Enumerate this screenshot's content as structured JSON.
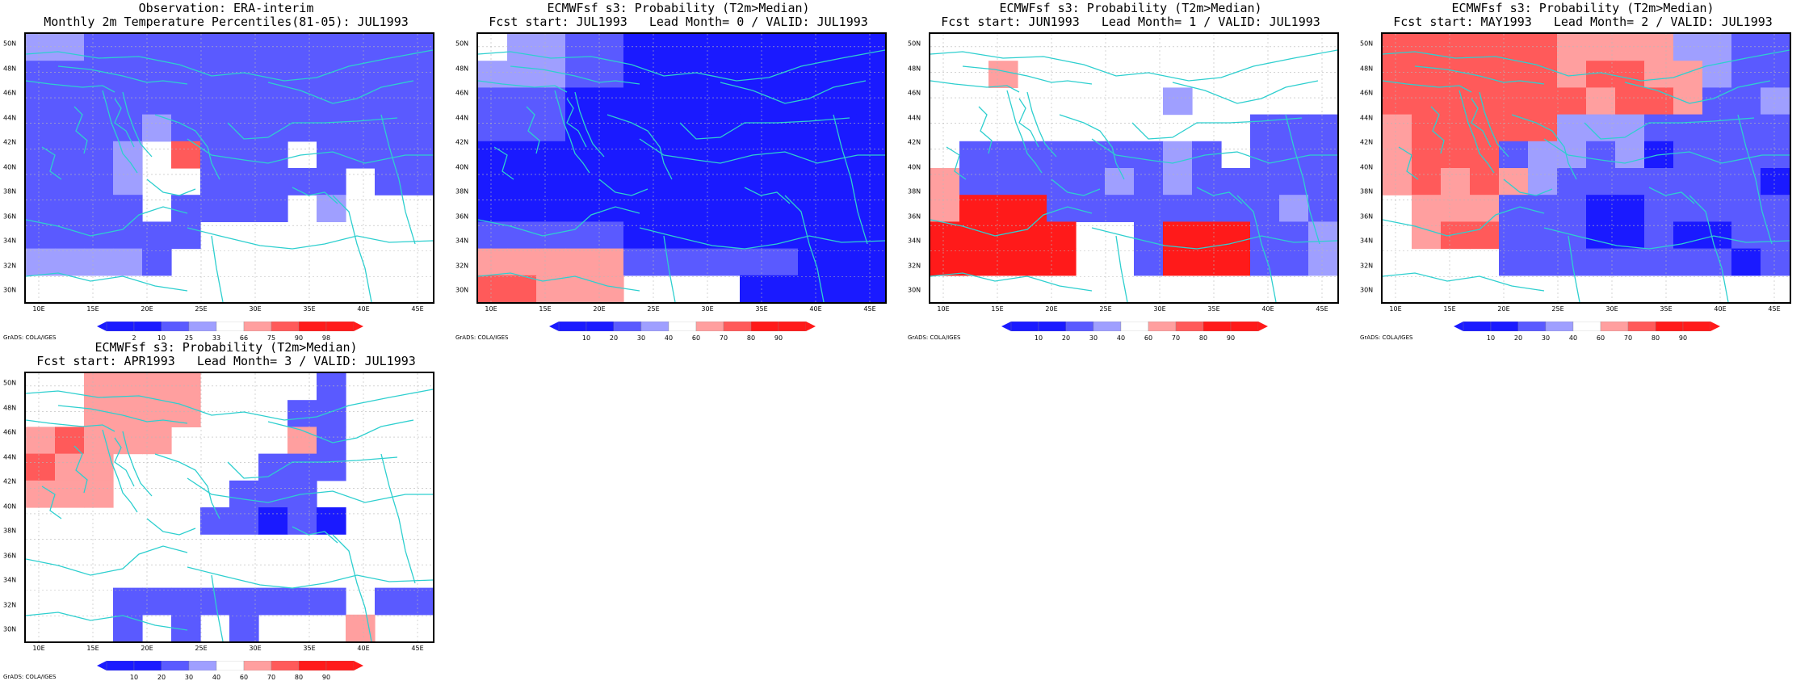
{
  "lat_labels": [
    "50N",
    "48N",
    "46N",
    "44N",
    "42N",
    "40N",
    "38N",
    "36N",
    "34N",
    "32N",
    "30N"
  ],
  "lon_labels": [
    "10E",
    "15E",
    "20E",
    "25E",
    "30E",
    "35E",
    "40E",
    "45E"
  ],
  "credit": "GrADS: COLA/IGES",
  "colors": {
    "coast": "#2ecfcf",
    "blue_dark": "#1a1aff",
    "blue_mid": "#5a5aff",
    "blue_light": "#9f9fff",
    "red_light": "#ff9f9f",
    "red_mid": "#ff5a5a",
    "red_dark": "#ff1a1a"
  },
  "panels": [
    {
      "title_line1": "Observation: ERA-interim",
      "title_line2": "Monthly 2m Temperature Percentiles(81-05): JUL1993",
      "colorbar_labels": [
        "2",
        "10",
        "25",
        "33",
        "66",
        "75",
        "90",
        "98"
      ]
    },
    {
      "title_line1": "ECMWFsf s3: Probability (T2m>Median)",
      "title_line2": "Fcst start: JUL1993   Lead Month= 0 / VALID: JUL1993",
      "colorbar_labels": [
        "10",
        "20",
        "30",
        "40",
        "60",
        "70",
        "80",
        "90"
      ]
    },
    {
      "title_line1": "ECMWFsf s3: Probability (T2m>Median)",
      "title_line2": "Fcst start: JUN1993   Lead Month= 1 / VALID: JUL1993",
      "colorbar_labels": [
        "10",
        "20",
        "30",
        "40",
        "60",
        "70",
        "80",
        "90"
      ]
    },
    {
      "title_line1": "ECMWFsf s3: Probability (T2m>Median)",
      "title_line2": "Fcst start: MAY1993   Lead Month= 2 / VALID: JUL1993",
      "colorbar_labels": [
        "10",
        "20",
        "30",
        "40",
        "60",
        "70",
        "80",
        "90"
      ]
    },
    {
      "title_line1": "ECMWFsf s3: Probability (T2m>Median)",
      "title_line2": "Fcst start: APR1993   Lead Month= 3 / VALID: JUL1993",
      "colorbar_labels": [
        "10",
        "20",
        "30",
        "40",
        "60",
        "70",
        "80",
        "90"
      ]
    }
  ]
}
